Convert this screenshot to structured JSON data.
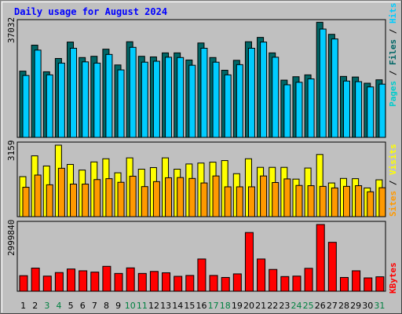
{
  "title": "Daily usage for August 2024",
  "colors": {
    "hits": "#00ccff",
    "files": "#006666",
    "pages": "#00cccc",
    "visits": "#ffff00",
    "sites": "#ff9900",
    "kbytes": "#ff0000",
    "weekday_label": "#000000",
    "weekend_label": "#008040",
    "panel_bg": "#c0c0c0"
  },
  "chart_data": [
    {
      "type": "bar",
      "panel": "hits-files-pages",
      "categories": [
        "1",
        "2",
        "3",
        "4",
        "5",
        "6",
        "7",
        "8",
        "9",
        "10",
        "11",
        "12",
        "13",
        "14",
        "15",
        "16",
        "17",
        "18",
        "19",
        "20",
        "21",
        "22",
        "23",
        "24",
        "25",
        "26",
        "27",
        "28",
        "29",
        "30",
        "31"
      ],
      "ytick_label": "37032",
      "ylim": [
        0,
        37032
      ],
      "series": [
        {
          "name": "Files",
          "values": [
            21400,
            29800,
            21200,
            25500,
            30800,
            25800,
            26200,
            28500,
            23400,
            30900,
            26200,
            26000,
            27300,
            27300,
            25000,
            30500,
            25800,
            21700,
            24900,
            30900,
            32300,
            27300,
            18500,
            19600,
            20200,
            37200,
            33300,
            19700,
            19500,
            17500,
            18600
          ]
        },
        {
          "name": "Hits",
          "values": [
            20000,
            28200,
            20200,
            24000,
            28800,
            24400,
            24000,
            26800,
            21800,
            29100,
            24300,
            24600,
            25900,
            25800,
            23300,
            28800,
            24300,
            20200,
            23500,
            28800,
            30800,
            25900,
            17000,
            17800,
            18900,
            35000,
            31800,
            18200,
            18000,
            16300,
            17200
          ]
        }
      ],
      "legend": [
        "Pages",
        "Files",
        "Hits"
      ]
    },
    {
      "type": "bar",
      "panel": "visits-sites",
      "categories": [
        "1",
        "2",
        "3",
        "4",
        "5",
        "6",
        "7",
        "8",
        "9",
        "10",
        "11",
        "12",
        "13",
        "14",
        "15",
        "16",
        "17",
        "18",
        "19",
        "20",
        "21",
        "22",
        "23",
        "24",
        "25",
        "26",
        "27",
        "28",
        "29",
        "30",
        "31"
      ],
      "ytick_label": "3159",
      "ylim": [
        0,
        3159
      ],
      "series": [
        {
          "name": "Visits",
          "values": [
            1770,
            2690,
            2240,
            3160,
            2310,
            2060,
            2420,
            2560,
            1940,
            2600,
            2100,
            2170,
            2600,
            2100,
            2330,
            2370,
            2410,
            2480,
            1900,
            2560,
            2180,
            2180,
            2180,
            1660,
            2150,
            2750,
            1490,
            1690,
            1680,
            1270,
            1630
          ]
        },
        {
          "name": "Sites",
          "values": [
            1300,
            1840,
            1410,
            2140,
            1440,
            1440,
            1640,
            1680,
            1520,
            1790,
            1330,
            1550,
            1720,
            1730,
            1690,
            1490,
            1800,
            1320,
            1320,
            1320,
            1800,
            1510,
            1670,
            1380,
            1370,
            1340,
            1270,
            1340,
            1370,
            1100,
            1280
          ]
        }
      ],
      "legend": [
        "Sites",
        "Visits"
      ]
    },
    {
      "type": "bar",
      "panel": "kbytes",
      "categories": [
        "1",
        "2",
        "3",
        "4",
        "5",
        "6",
        "7",
        "8",
        "9",
        "10",
        "11",
        "12",
        "13",
        "14",
        "15",
        "16",
        "17",
        "18",
        "19",
        "20",
        "21",
        "22",
        "23",
        "24",
        "25",
        "26",
        "27",
        "28",
        "29",
        "30",
        "31"
      ],
      "ytick_label": "2999840",
      "ylim": [
        0,
        2999840
      ],
      "series": [
        {
          "name": "KBytes",
          "values": [
            700000,
            1040000,
            680000,
            840000,
            1000000,
            920000,
            860000,
            1120000,
            800000,
            1050000,
            800000,
            890000,
            830000,
            670000,
            710000,
            1450000,
            710000,
            620000,
            780000,
            2640000,
            1450000,
            980000,
            660000,
            680000,
            1030000,
            3000000,
            2200000,
            620000,
            920000,
            600000,
            650000
          ]
        }
      ],
      "legend": [
        "KBytes"
      ]
    }
  ],
  "x_label_colors": [
    "weekday",
    "weekday",
    "weekend",
    "weekend",
    "weekday",
    "weekday",
    "weekday",
    "weekday",
    "weekday",
    "weekend",
    "weekend",
    "weekday",
    "weekday",
    "weekday",
    "weekday",
    "weekday",
    "weekend",
    "weekend",
    "weekday",
    "weekday",
    "weekday",
    "weekday",
    "weekday",
    "weekend",
    "weekend",
    "weekday",
    "weekday",
    "weekday",
    "weekday",
    "weekday",
    "weekend"
  ]
}
